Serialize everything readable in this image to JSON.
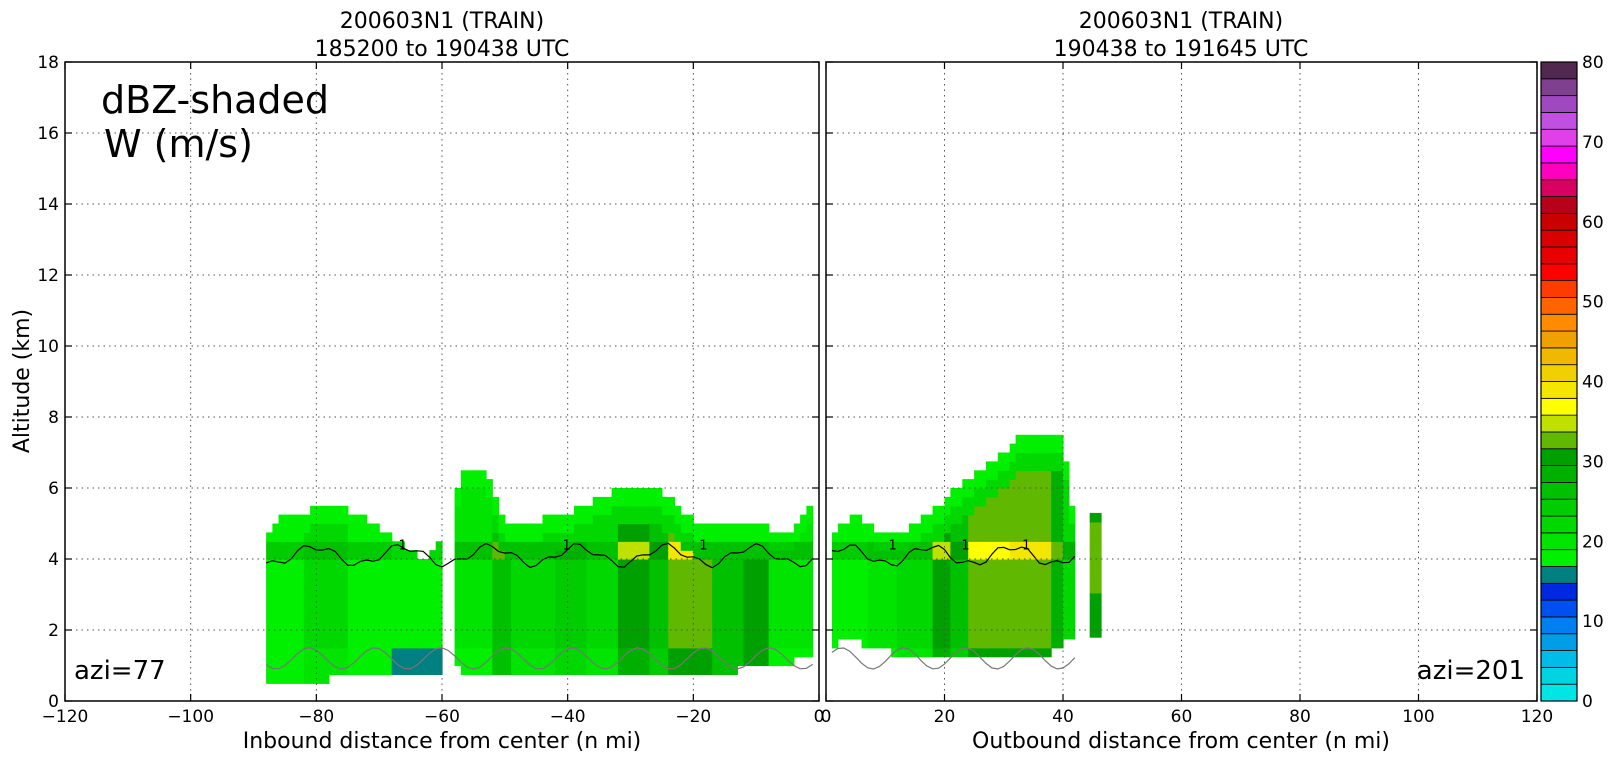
{
  "chart_data": [
    {
      "type": "heatmap",
      "title": "200603N1 (TRAIN)",
      "subtitle": "185200 to 190438 UTC",
      "xlabel": "Inbound distance from center (n mi)",
      "ylabel": "Altitude (km)",
      "xlim": [
        -120,
        0
      ],
      "ylim": [
        0,
        18
      ],
      "xticks": [
        "−120",
        "−100",
        "−80",
        "−60",
        "−40",
        "−20",
        "0"
      ],
      "xtick_values": [
        -120,
        -100,
        -80,
        -60,
        -40,
        -20,
        0
      ],
      "yticks": [
        "0",
        "2",
        "4",
        "6",
        "8",
        "10",
        "12",
        "14",
        "16",
        "18"
      ],
      "ytick_values": [
        0,
        2,
        4,
        6,
        8,
        10,
        12,
        14,
        16,
        18
      ],
      "grid": true,
      "annotations": [
        "dBZ-shaded",
        "W (m/s)"
      ],
      "azimuth_label": "azi=77",
      "echo_top_km": [
        [
          -88,
          4.6
        ],
        [
          -85,
          5.3
        ],
        [
          -80,
          5.4
        ],
        [
          -75,
          5.4
        ],
        [
          -70,
          4.9
        ],
        [
          -66,
          4.3
        ],
        [
          -63,
          4.0
        ],
        [
          -60,
          4.5
        ],
        [
          -57,
          6.4
        ],
        [
          -53,
          6.4
        ],
        [
          -50,
          5.1
        ],
        [
          -45,
          5.1
        ],
        [
          -40,
          5.2
        ],
        [
          -35,
          5.8
        ],
        [
          -30,
          6.0
        ],
        [
          -25,
          5.9
        ],
        [
          -20,
          5.1
        ],
        [
          -15,
          4.9
        ],
        [
          -10,
          5.1
        ],
        [
          -5,
          4.6
        ],
        [
          -1,
          5.5
        ]
      ],
      "echo_base_km": [
        [
          -88,
          0.6
        ],
        [
          -80,
          0.6
        ],
        [
          -70,
          0.7
        ],
        [
          -63,
          0.8
        ],
        [
          -58,
          0.9
        ],
        [
          -56,
          0.8
        ],
        [
          -50,
          0.8
        ],
        [
          -40,
          0.7
        ],
        [
          -30,
          0.7
        ],
        [
          -20,
          0.7
        ],
        [
          -12,
          0.9
        ],
        [
          -5,
          1.1
        ],
        [
          -1,
          1.2
        ]
      ],
      "reflectivity_columns": [
        {
          "x": [
            -88,
            -82
          ],
          "dbz": 22
        },
        {
          "x": [
            -82,
            -75
          ],
          "dbz": 25
        },
        {
          "x": [
            -75,
            -68
          ],
          "dbz": 22
        },
        {
          "x": [
            -68,
            -60
          ],
          "dbz": 20
        },
        {
          "x": [
            -58,
            -52
          ],
          "dbz": 24
        },
        {
          "x": [
            -52,
            -49
          ],
          "dbz": 32
        },
        {
          "x": [
            -49,
            -42
          ],
          "dbz": 26
        },
        {
          "x": [
            -42,
            -37
          ],
          "dbz": 28
        },
        {
          "x": [
            -37,
            -32
          ],
          "dbz": 26
        },
        {
          "x": [
            -32,
            -27
          ],
          "dbz": 35
        },
        {
          "x": [
            -27,
            -24
          ],
          "dbz": 30
        },
        {
          "x": [
            -24,
            -17
          ],
          "dbz": 39
        },
        {
          "x": [
            -17,
            -12
          ],
          "dbz": 32
        },
        {
          "x": [
            -12,
            -8
          ],
          "dbz": 37
        },
        {
          "x": [
            -8,
            -1
          ],
          "dbz": 24
        }
      ],
      "bright_band_km": 4.1,
      "w_contour_levels": [
        "1"
      ]
    },
    {
      "type": "heatmap",
      "title": "200603N1 (TRAIN)",
      "subtitle": "190438 to 191645 UTC",
      "xlabel": "Outbound distance from center (n mi)",
      "xlim": [
        0,
        120
      ],
      "ylim": [
        0,
        18
      ],
      "xticks": [
        "0",
        "20",
        "40",
        "60",
        "80",
        "100",
        "120"
      ],
      "xtick_values": [
        0,
        20,
        40,
        60,
        80,
        100,
        120
      ],
      "grid": true,
      "azimuth_label": "azi=201",
      "echo_top_km": [
        [
          1,
          4.8
        ],
        [
          5,
          5.2
        ],
        [
          10,
          4.7
        ],
        [
          15,
          4.9
        ],
        [
          20,
          5.7
        ],
        [
          25,
          6.4
        ],
        [
          30,
          7.0
        ],
        [
          34,
          7.6
        ],
        [
          38,
          7.6
        ],
        [
          40,
          7.4
        ],
        [
          42,
          5.0
        ]
      ],
      "echo_base_km": [
        [
          1,
          1.6
        ],
        [
          5,
          1.7
        ],
        [
          10,
          1.4
        ],
        [
          15,
          1.2
        ],
        [
          20,
          1.2
        ],
        [
          30,
          1.2
        ],
        [
          38,
          1.3
        ],
        [
          41,
          1.8
        ]
      ],
      "reflectivity_columns": [
        {
          "x": [
            1,
            7
          ],
          "dbz": 22
        },
        {
          "x": [
            7,
            12
          ],
          "dbz": 24
        },
        {
          "x": [
            12,
            18
          ],
          "dbz": 26
        },
        {
          "x": [
            18,
            21
          ],
          "dbz": 36
        },
        {
          "x": [
            21,
            24
          ],
          "dbz": 30
        },
        {
          "x": [
            24,
            31
          ],
          "dbz": 38
        },
        {
          "x": [
            31,
            38
          ],
          "dbz": 39
        },
        {
          "x": [
            38,
            40
          ],
          "dbz": 33
        },
        {
          "x": [
            40,
            42
          ],
          "dbz": 27
        }
      ],
      "isolated_echo": {
        "x": [
          44.5,
          46.5
        ],
        "y": [
          1.8,
          5.3
        ],
        "dbz": 35
      },
      "bright_band_km": 4.1,
      "w_contour_levels": [
        "1"
      ]
    }
  ],
  "colorbar": {
    "min": 0,
    "max": 80,
    "step": 2.5,
    "tick_values": [
      0,
      10,
      20,
      30,
      40,
      50,
      60,
      70,
      80
    ],
    "tick_labels": [
      "0",
      "10",
      "20",
      "30",
      "40",
      "50",
      "60",
      "70",
      "80"
    ],
    "colors": [
      "#00e6e6",
      "#00d4e0",
      "#00bce8",
      "#009ee8",
      "#0080f0",
      "#0050f0",
      "#0028e0",
      "#008080",
      "#00f000",
      "#00e400",
      "#00d800",
      "#00cc00",
      "#00c000",
      "#00b000",
      "#00a000",
      "#60b800",
      "#c0e000",
      "#ffff00",
      "#f5e600",
      "#f0d000",
      "#f0b800",
      "#f0a000",
      "#ff8c00",
      "#ff6400",
      "#ff3c00",
      "#ff0000",
      "#e80000",
      "#d80000",
      "#c80000",
      "#b80018",
      "#d80060",
      "#ff00c0",
      "#ff00ff",
      "#e040e8",
      "#c050e0",
      "#a048c0",
      "#804090",
      "#502850"
    ]
  }
}
